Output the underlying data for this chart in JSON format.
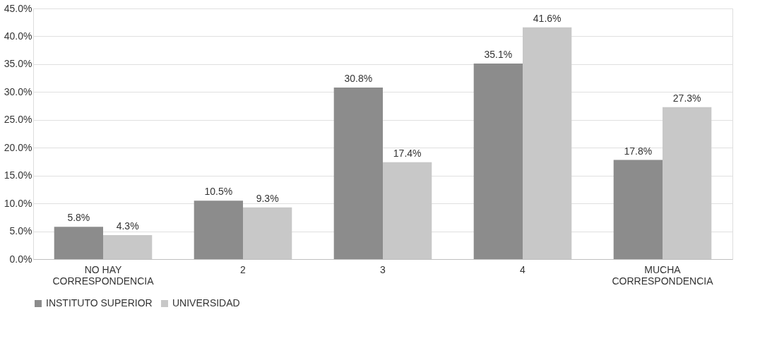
{
  "chart_data": {
    "type": "bar",
    "categories": [
      "NO HAY CORRESPONDENCIA",
      "2",
      "3",
      "4",
      "MUCHA CORRESPONDENCIA"
    ],
    "series": [
      {
        "name": "INSTITUTO SUPERIOR",
        "color": "#8c8c8c",
        "values": [
          5.8,
          10.5,
          30.8,
          35.1,
          17.8
        ],
        "value_labels": [
          "5.8%",
          "10.5%",
          "30.8%",
          "35.1%",
          "17.8%"
        ]
      },
      {
        "name": "UNIVERSIDAD",
        "color": "#c8c8c8",
        "values": [
          4.3,
          9.3,
          17.4,
          41.6,
          27.3
        ],
        "value_labels": [
          "4.3%",
          "9.3%",
          "17.4%",
          "41.6%",
          "27.3%"
        ]
      }
    ],
    "ylim": [
      0,
      45
    ],
    "yticks": [
      {
        "value": 0,
        "label": "0.0%"
      },
      {
        "value": 5,
        "label": "5.0%"
      },
      {
        "value": 10,
        "label": "10.0%"
      },
      {
        "value": 15,
        "label": "15.0%"
      },
      {
        "value": 20,
        "label": "20.0%"
      },
      {
        "value": 25,
        "label": "25.0%"
      },
      {
        "value": 30,
        "label": "30.0%"
      },
      {
        "value": 35,
        "label": "35.0%"
      },
      {
        "value": 40,
        "label": "40.0%"
      },
      {
        "value": 45,
        "label": "45.0%"
      }
    ],
    "grid": "y",
    "legend": "bottom"
  }
}
